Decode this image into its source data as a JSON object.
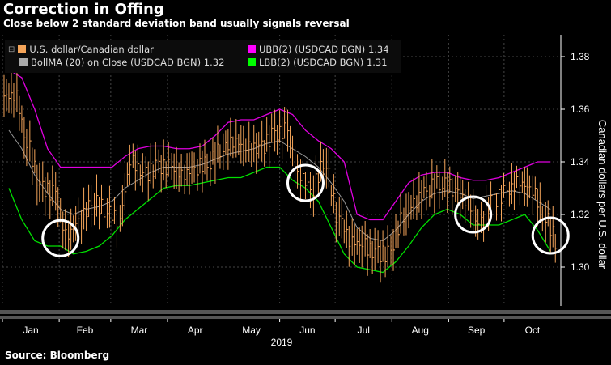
{
  "title": "Correction in Offing",
  "subtitle": "Close below 2 standard deviation band usually signals reversal",
  "source": "Source: Bloomberg",
  "legend": [
    {
      "label": "U.S. dollar/Canadian dollar",
      "color": "#f5a55a"
    },
    {
      "label": "BollMA (20)  on Close (USDCAD BGN) 1.32",
      "color": "#aaaaaa"
    },
    {
      "label": "UBB(2) (USDCAD BGN) 1.34",
      "color": "#ff00ff"
    },
    {
      "label": "LBB(2) (USDCAD BGN) 1.31",
      "color": "#00ff00"
    }
  ],
  "chart_data": {
    "type": "line",
    "title": "Correction in Offing",
    "ylabel": "Canadian dollars per U.S. dollar",
    "xlabel": "2019",
    "ylim": [
      1.285,
      1.385
    ],
    "yticks": [
      "1.30",
      "1.32",
      "1.34",
      "1.36",
      "1.38"
    ],
    "months": [
      "Jan",
      "Feb",
      "Mar",
      "Apr",
      "May",
      "Jun",
      "Jul",
      "Aug",
      "Sep",
      "Oct"
    ],
    "weeks_per_month": [
      4.4,
      4,
      4.4,
      4.3,
      4.4,
      4.3,
      4.4,
      4.4,
      4.3,
      4.4
    ],
    "close": [
      1.365,
      1.345,
      1.33,
      1.328,
      1.312,
      1.318,
      1.325,
      1.322,
      1.318,
      1.34,
      1.335,
      1.338,
      1.338,
      1.335,
      1.338,
      1.34,
      1.345,
      1.348,
      1.345,
      1.345,
      1.35,
      1.352,
      1.335,
      1.33,
      1.34,
      1.32,
      1.31,
      1.308,
      1.305,
      1.305,
      1.318,
      1.325,
      1.33,
      1.332,
      1.33,
      1.325,
      1.316,
      1.325,
      1.328,
      1.332,
      1.33,
      1.32,
      1.31
    ],
    "upper": [
      1.375,
      1.372,
      1.36,
      1.345,
      1.338,
      1.338,
      1.338,
      1.338,
      1.338,
      1.342,
      1.345,
      1.346,
      1.346,
      1.345,
      1.345,
      1.346,
      1.35,
      1.355,
      1.356,
      1.356,
      1.358,
      1.36,
      1.358,
      1.352,
      1.348,
      1.345,
      1.34,
      1.32,
      1.318,
      1.318,
      1.325,
      1.332,
      1.335,
      1.336,
      1.336,
      1.334,
      1.333,
      1.333,
      1.334,
      1.336,
      1.338,
      1.34,
      1.34
    ],
    "mid": [
      1.352,
      1.345,
      1.335,
      1.328,
      1.322,
      1.32,
      1.322,
      1.323,
      1.325,
      1.33,
      1.333,
      1.336,
      1.338,
      1.338,
      1.338,
      1.339,
      1.341,
      1.343,
      1.344,
      1.345,
      1.347,
      1.348,
      1.345,
      1.342,
      1.338,
      1.332,
      1.325,
      1.315,
      1.311,
      1.31,
      1.314,
      1.32,
      1.325,
      1.328,
      1.329,
      1.328,
      1.326,
      1.327,
      1.328,
      1.329,
      1.328,
      1.325,
      1.322
    ],
    "lower": [
      1.33,
      1.318,
      1.31,
      1.308,
      1.308,
      1.305,
      1.306,
      1.308,
      1.312,
      1.318,
      1.322,
      1.326,
      1.33,
      1.331,
      1.331,
      1.332,
      1.333,
      1.334,
      1.334,
      1.336,
      1.338,
      1.338,
      1.333,
      1.33,
      1.325,
      1.315,
      1.305,
      1.3,
      1.299,
      1.298,
      1.302,
      1.308,
      1.315,
      1.32,
      1.322,
      1.32,
      1.316,
      1.316,
      1.316,
      1.318,
      1.32,
      1.314,
      1.306
    ],
    "highlights": [
      {
        "week": 4,
        "value": 1.311
      },
      {
        "week": 23,
        "value": 1.332
      },
      {
        "week": 36,
        "value": 1.32
      },
      {
        "week": 42,
        "value": 1.312
      }
    ]
  }
}
